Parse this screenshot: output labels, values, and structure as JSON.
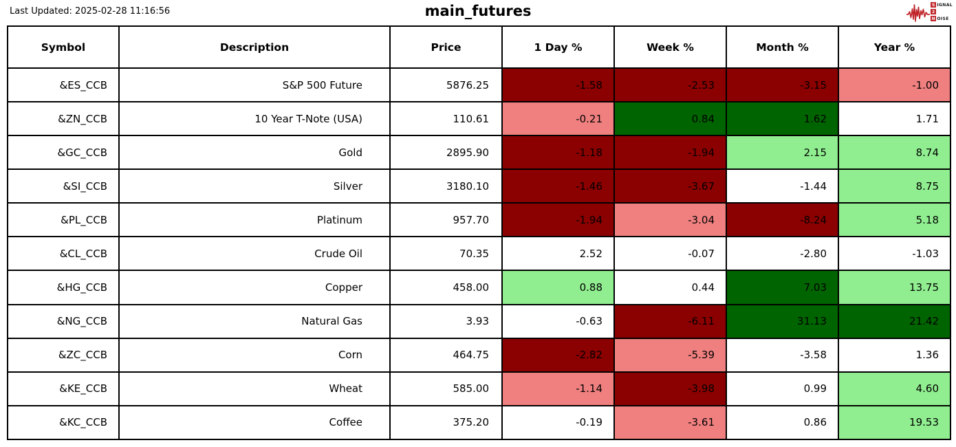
{
  "header": {
    "last_updated": "Last Updated: 2025-02-28 11:16:56",
    "title": "main_futures"
  },
  "logo": {
    "line1_box": "S",
    "line1_rest": "IGNAL",
    "line2_box": "2",
    "line3_box": "N",
    "line3_rest": "OISE",
    "accent_color": "#c02428"
  },
  "colors": {
    "darkred": "#8b0000",
    "lightred": "#f08080",
    "lightgreen": "#90ee90",
    "darkgreen": "#006400",
    "white": "#ffffff"
  },
  "chart_data": {
    "type": "table",
    "title": "main_futures",
    "columns": [
      "Symbol",
      "Description",
      "Price",
      "1 Day %",
      "Week %",
      "Month %",
      "Year %"
    ],
    "rows": [
      {
        "symbol": "&ES_CCB",
        "description": "S&P 500 Future",
        "price": "5876.25",
        "pcts": [
          {
            "v": "-1.58",
            "c": "darkred"
          },
          {
            "v": "-2.53",
            "c": "darkred"
          },
          {
            "v": "-3.15",
            "c": "darkred"
          },
          {
            "v": "-1.00",
            "c": "lightred"
          }
        ]
      },
      {
        "symbol": "&ZN_CCB",
        "description": "10 Year T-Note (USA)",
        "price": "110.61",
        "pcts": [
          {
            "v": "-0.21",
            "c": "lightred"
          },
          {
            "v": "0.84",
            "c": "darkgreen"
          },
          {
            "v": "1.62",
            "c": "darkgreen"
          },
          {
            "v": "1.71",
            "c": "white"
          }
        ]
      },
      {
        "symbol": "&GC_CCB",
        "description": "Gold",
        "price": "2895.90",
        "pcts": [
          {
            "v": "-1.18",
            "c": "darkred"
          },
          {
            "v": "-1.94",
            "c": "darkred"
          },
          {
            "v": "2.15",
            "c": "lightgreen"
          },
          {
            "v": "8.74",
            "c": "lightgreen"
          }
        ]
      },
      {
        "symbol": "&SI_CCB",
        "description": "Silver",
        "price": "3180.10",
        "pcts": [
          {
            "v": "-1.46",
            "c": "darkred"
          },
          {
            "v": "-3.67",
            "c": "darkred"
          },
          {
            "v": "-1.44",
            "c": "white"
          },
          {
            "v": "8.75",
            "c": "lightgreen"
          }
        ]
      },
      {
        "symbol": "&PL_CCB",
        "description": "Platinum",
        "price": "957.70",
        "pcts": [
          {
            "v": "-1.94",
            "c": "darkred"
          },
          {
            "v": "-3.04",
            "c": "lightred"
          },
          {
            "v": "-8.24",
            "c": "darkred"
          },
          {
            "v": "5.18",
            "c": "lightgreen"
          }
        ]
      },
      {
        "symbol": "&CL_CCB",
        "description": "Crude Oil",
        "price": "70.35",
        "pcts": [
          {
            "v": "2.52",
            "c": "white"
          },
          {
            "v": "-0.07",
            "c": "white"
          },
          {
            "v": "-2.80",
            "c": "white"
          },
          {
            "v": "-1.03",
            "c": "white"
          }
        ]
      },
      {
        "symbol": "&HG_CCB",
        "description": "Copper",
        "price": "458.00",
        "pcts": [
          {
            "v": "0.88",
            "c": "lightgreen"
          },
          {
            "v": "0.44",
            "c": "white"
          },
          {
            "v": "7.03",
            "c": "darkgreen"
          },
          {
            "v": "13.75",
            "c": "lightgreen"
          }
        ]
      },
      {
        "symbol": "&NG_CCB",
        "description": "Natural Gas",
        "price": "3.93",
        "pcts": [
          {
            "v": "-0.63",
            "c": "white"
          },
          {
            "v": "-6.11",
            "c": "darkred"
          },
          {
            "v": "31.13",
            "c": "darkgreen"
          },
          {
            "v": "21.42",
            "c": "darkgreen"
          }
        ]
      },
      {
        "symbol": "&ZC_CCB",
        "description": "Corn",
        "price": "464.75",
        "pcts": [
          {
            "v": "-2.82",
            "c": "darkred"
          },
          {
            "v": "-5.39",
            "c": "lightred"
          },
          {
            "v": "-3.58",
            "c": "white"
          },
          {
            "v": "1.36",
            "c": "white"
          }
        ]
      },
      {
        "symbol": "&KE_CCB",
        "description": "Wheat",
        "price": "585.00",
        "pcts": [
          {
            "v": "-1.14",
            "c": "lightred"
          },
          {
            "v": "-3.98",
            "c": "darkred"
          },
          {
            "v": "0.99",
            "c": "white"
          },
          {
            "v": "4.60",
            "c": "lightgreen"
          }
        ]
      },
      {
        "symbol": "&KC_CCB",
        "description": "Coffee",
        "price": "375.20",
        "pcts": [
          {
            "v": "-0.19",
            "c": "white"
          },
          {
            "v": "-3.61",
            "c": "lightred"
          },
          {
            "v": "0.86",
            "c": "white"
          },
          {
            "v": "19.53",
            "c": "lightgreen"
          }
        ]
      }
    ]
  }
}
